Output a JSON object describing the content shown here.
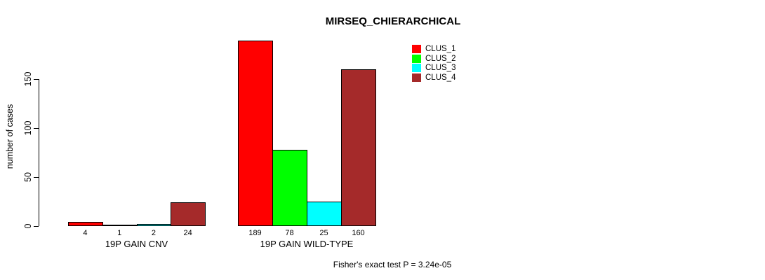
{
  "chart_data": {
    "type": "bar",
    "title": "MIRSEQ_CHIERARCHICAL",
    "ylabel": "number of cases",
    "xlabel": "",
    "ylim": [
      0,
      189
    ],
    "yticks": [
      0,
      50,
      100,
      150
    ],
    "grid": false,
    "legend_position": "top-right",
    "categories": [
      "19P GAIN CNV",
      "19P GAIN WILD-TYPE"
    ],
    "series": [
      {
        "name": "CLUS_1",
        "color": "#ff0000",
        "values": [
          4,
          189
        ]
      },
      {
        "name": "CLUS_2",
        "color": "#00ff00",
        "values": [
          1,
          78
        ]
      },
      {
        "name": "CLUS_3",
        "color": "#00ffff",
        "values": [
          2,
          25
        ]
      },
      {
        "name": "CLUS_4",
        "color": "#a52a2a",
        "values": [
          24,
          160
        ]
      }
    ],
    "bar_value_labels": [
      [
        "4",
        "1",
        "2",
        "24"
      ],
      [
        "189",
        "78",
        "25",
        "160"
      ]
    ],
    "annotation": "Fisher's exact test P = 3.24e-05"
  }
}
